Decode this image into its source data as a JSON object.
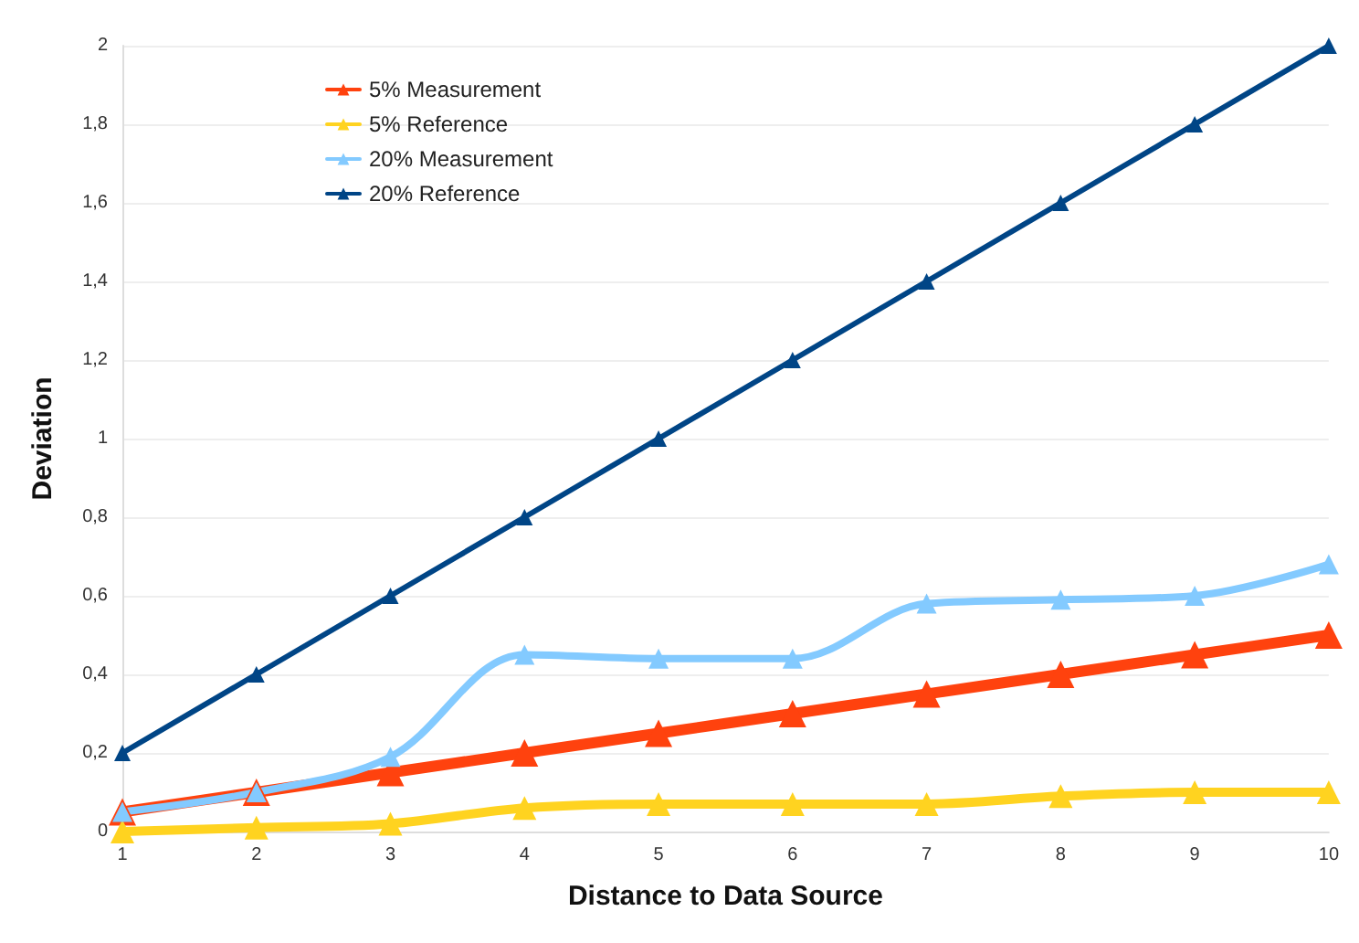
{
  "chart_data": {
    "type": "line",
    "xlabel": "Distance to Data Source",
    "ylabel": "Deviation",
    "x": [
      1,
      2,
      3,
      4,
      5,
      6,
      7,
      8,
      9,
      10
    ],
    "series": [
      {
        "name": "5% Measurement",
        "color": "#ff420e",
        "values": [
          0.05,
          0.1,
          0.15,
          0.2,
          0.25,
          0.3,
          0.35,
          0.4,
          0.45,
          0.5
        ]
      },
      {
        "name": "5% Reference",
        "color": "#ffd320",
        "values": [
          0,
          0.01,
          0.02,
          0.06,
          0.07,
          0.07,
          0.07,
          0.09,
          0.1,
          0.1
        ]
      },
      {
        "name": "20% Measurement",
        "color": "#83caff",
        "values": [
          0.05,
          0.1,
          0.19,
          0.45,
          0.44,
          0.44,
          0.58,
          0.59,
          0.6,
          0.68
        ]
      },
      {
        "name": "20% Reference",
        "color": "#004586",
        "values": [
          0.2,
          0.4,
          0.6,
          0.8,
          1,
          1.2,
          1.4,
          1.6,
          1.8,
          2
        ]
      }
    ],
    "xlim": [
      1,
      10
    ],
    "xticks": [
      1,
      2,
      3,
      4,
      5,
      6,
      7,
      8,
      9,
      10
    ],
    "ylim": [
      0,
      2
    ],
    "yticks": [
      0,
      {
        "value": 0.2,
        "label": "0,2"
      },
      {
        "value": 0.4,
        "label": "0,4"
      },
      {
        "value": 0.6,
        "label": "0,6"
      },
      {
        "value": 0.8,
        "label": "0,8"
      },
      1,
      {
        "value": 1.2,
        "label": "1,2"
      },
      {
        "value": 1.4,
        "label": "1,4"
      },
      {
        "value": 1.6,
        "label": "1,6"
      },
      {
        "value": 1.8,
        "label": "1,8"
      },
      2
    ],
    "grid": "y",
    "legend": "top left",
    "marker": "triangle",
    "line_style": "solid"
  }
}
